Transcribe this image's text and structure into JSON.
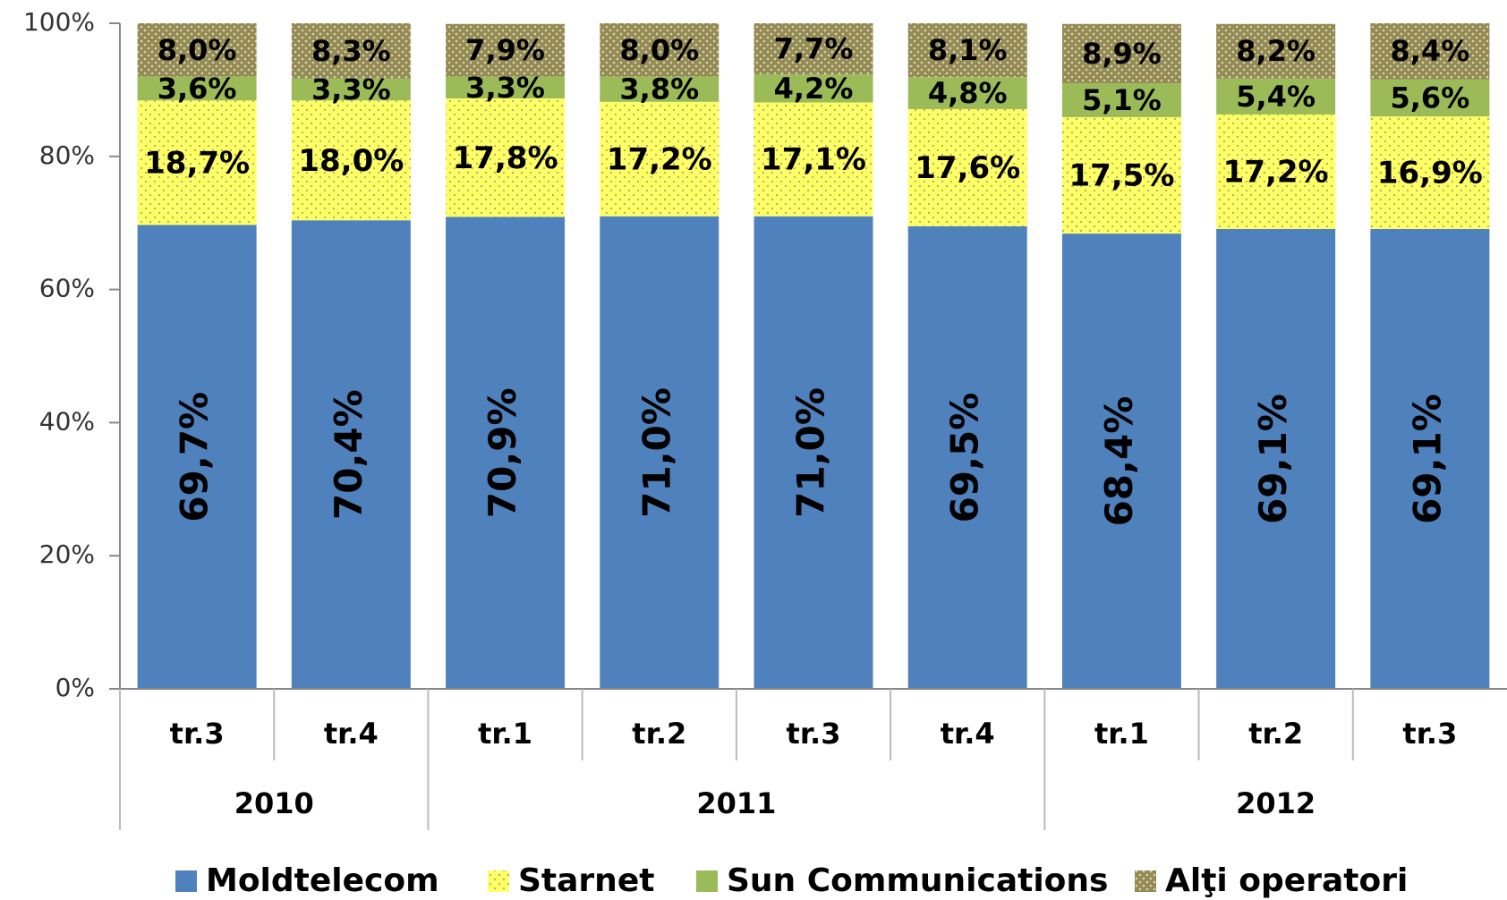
{
  "chart_data": {
    "type": "stacked_bar",
    "categories": [
      "tr.3",
      "tr.4",
      "tr.1",
      "tr.2",
      "tr.3",
      "tr.4",
      "tr.1",
      "tr.2",
      "tr.3"
    ],
    "groups": [
      {
        "label": "2010",
        "count": 2
      },
      {
        "label": "2011",
        "count": 4
      },
      {
        "label": "2012",
        "count": 3
      }
    ],
    "series": [
      {
        "name": "Moldtelecom",
        "color": "#4f81bd",
        "values": [
          69.7,
          70.4,
          70.9,
          71.0,
          71.0,
          69.5,
          68.4,
          69.1,
          69.1
        ],
        "value_labels": [
          "69,7%",
          "70,4%",
          "70,9%",
          "71,0%",
          "71,0%",
          "69,5%",
          "68,4%",
          "69,1%",
          "69,1%"
        ]
      },
      {
        "name": "Starnet",
        "color": "#ffff66",
        "values": [
          18.7,
          18.0,
          17.8,
          17.2,
          17.1,
          17.6,
          17.5,
          17.2,
          16.9
        ],
        "value_labels": [
          "18,7%",
          "18,0%",
          "17,8%",
          "17,2%",
          "17,1%",
          "17,6%",
          "17,5%",
          "17,2%",
          "16,9%"
        ]
      },
      {
        "name": "Sun Communications",
        "color": "#9bbb59",
        "values": [
          3.6,
          3.3,
          3.3,
          3.8,
          4.2,
          4.8,
          5.1,
          5.4,
          5.6
        ],
        "value_labels": [
          "3,6%",
          "3,3%",
          "3,3%",
          "3,8%",
          "4,2%",
          "4,8%",
          "5,1%",
          "5,4%",
          "5,6%"
        ]
      },
      {
        "name": "Alţi operatori",
        "color": "#948a54",
        "values": [
          8.0,
          8.3,
          7.9,
          8.0,
          7.7,
          8.1,
          8.9,
          8.2,
          8.4
        ],
        "value_labels": [
          "8,0%",
          "8,3%",
          "7,9%",
          "8,0%",
          "7,7%",
          "8,1%",
          "8,9%",
          "8,2%",
          "8,4%"
        ]
      }
    ],
    "ylim": [
      0,
      100
    ],
    "yticks": [
      {
        "value": 0,
        "label": "0%"
      },
      {
        "value": 20,
        "label": "20%"
      },
      {
        "value": 40,
        "label": "40%"
      },
      {
        "value": 60,
        "label": "60%"
      },
      {
        "value": 80,
        "label": "80%"
      },
      {
        "value": 100,
        "label": "100%"
      }
    ],
    "legend": "bottom"
  }
}
